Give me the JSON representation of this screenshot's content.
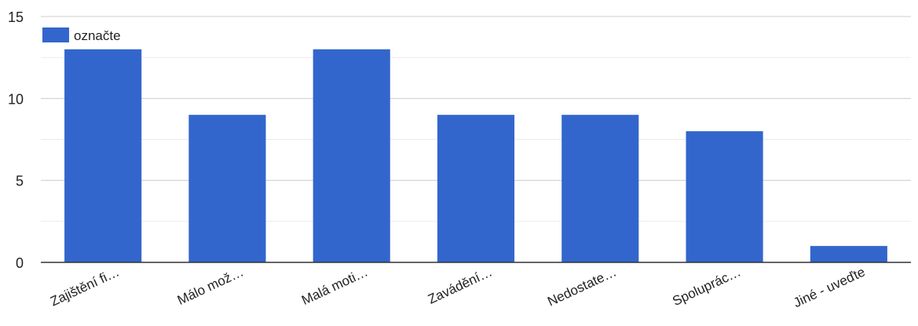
{
  "chart_data": {
    "type": "bar",
    "categories": [
      "Zajištění fi…",
      "Málo mož…",
      "Malá moti…",
      "Zavádění…",
      "Nedostate…",
      "Spoluprác…",
      "Jiné - uveďte"
    ],
    "series": [
      {
        "name": "označte",
        "values": [
          13,
          9,
          13,
          9,
          9,
          8,
          1
        ]
      }
    ],
    "ylim": [
      0,
      15
    ],
    "yticks": [
      0,
      5,
      10,
      15
    ],
    "grid": true,
    "legend": "top-left",
    "colors": {
      "bar": "#3366cc",
      "grid": "#e6e6e6",
      "baseline": "#333333",
      "text": "#222222"
    }
  }
}
